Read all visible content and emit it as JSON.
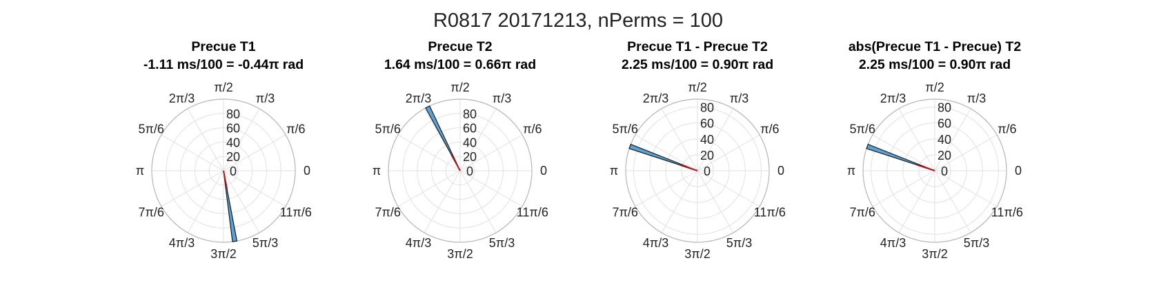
{
  "figure_title": "R0817 20171213, nPerms = 100",
  "colors": {
    "bar_fill": "#5aa3d8",
    "bar_edge": "#1a1a1a",
    "mean_line": "#b0151c",
    "grid": "#e1e1e1"
  },
  "chart_data": [
    {
      "type": "polar-histogram",
      "title": [
        "Precue T1",
        "-1.11 ms/100 = -0.44π rad"
      ],
      "theta_ticks": [
        "0",
        "π/6",
        "π/3",
        "π/2",
        "2π/3",
        "5π/6",
        "π",
        "7π/6",
        "4π/3",
        "3π/2",
        "5π/3",
        "11π/6"
      ],
      "r_ticks": [
        "0",
        "20",
        "40",
        "60",
        "80"
      ],
      "rlim": [
        0,
        100
      ],
      "bars": [
        {
          "theta_from_pi": -0.46,
          "theta_to_pi": -0.44,
          "count": 100
        }
      ],
      "mean_angle_pi": -0.44
    },
    {
      "type": "polar-histogram",
      "title": [
        "Precue T2",
        "1.64 ms/100 = 0.66π rad"
      ],
      "theta_ticks": [
        "0",
        "π/6",
        "π/3",
        "π/2",
        "2π/3",
        "5π/6",
        "π",
        "7π/6",
        "4π/3",
        "3π/2",
        "5π/3",
        "11π/6"
      ],
      "r_ticks": [
        "0",
        "20",
        "40",
        "60",
        "80"
      ],
      "rlim": [
        0,
        100
      ],
      "bars": [
        {
          "theta_from_pi": 0.64,
          "theta_to_pi": 0.66,
          "count": 100
        }
      ],
      "mean_angle_pi": 0.66
    },
    {
      "type": "polar-histogram",
      "title": [
        "Precue T1 - Precue T2",
        "2.25 ms/100 = 0.90π rad"
      ],
      "theta_ticks": [
        "0",
        "π/6",
        "π/3",
        "π/2",
        "2π/3",
        "5π/6",
        "π",
        "7π/6",
        "4π/3",
        "3π/2",
        "5π/3",
        "11π/6"
      ],
      "r_ticks": [
        "0",
        "20",
        "40",
        "60",
        "80"
      ],
      "rlim": [
        0,
        90
      ],
      "bars": [
        {
          "theta_from_pi": 0.88,
          "theta_to_pi": 0.9,
          "count": 90
        }
      ],
      "mean_angle_pi": 0.9
    },
    {
      "type": "polar-histogram",
      "title": [
        "abs(Precue T1 - Precue) T2",
        "2.25 ms/100 = 0.90π rad"
      ],
      "theta_ticks": [
        "0",
        "π/6",
        "π/3",
        "π/2",
        "2π/3",
        "5π/6",
        "π",
        "7π/6",
        "4π/3",
        "3π/2",
        "5π/3",
        "11π/6"
      ],
      "r_ticks": [
        "0",
        "20",
        "40",
        "60",
        "80"
      ],
      "rlim": [
        0,
        90
      ],
      "bars": [
        {
          "theta_from_pi": 0.88,
          "theta_to_pi": 0.9,
          "count": 90
        }
      ],
      "mean_angle_pi": 0.9
    }
  ]
}
